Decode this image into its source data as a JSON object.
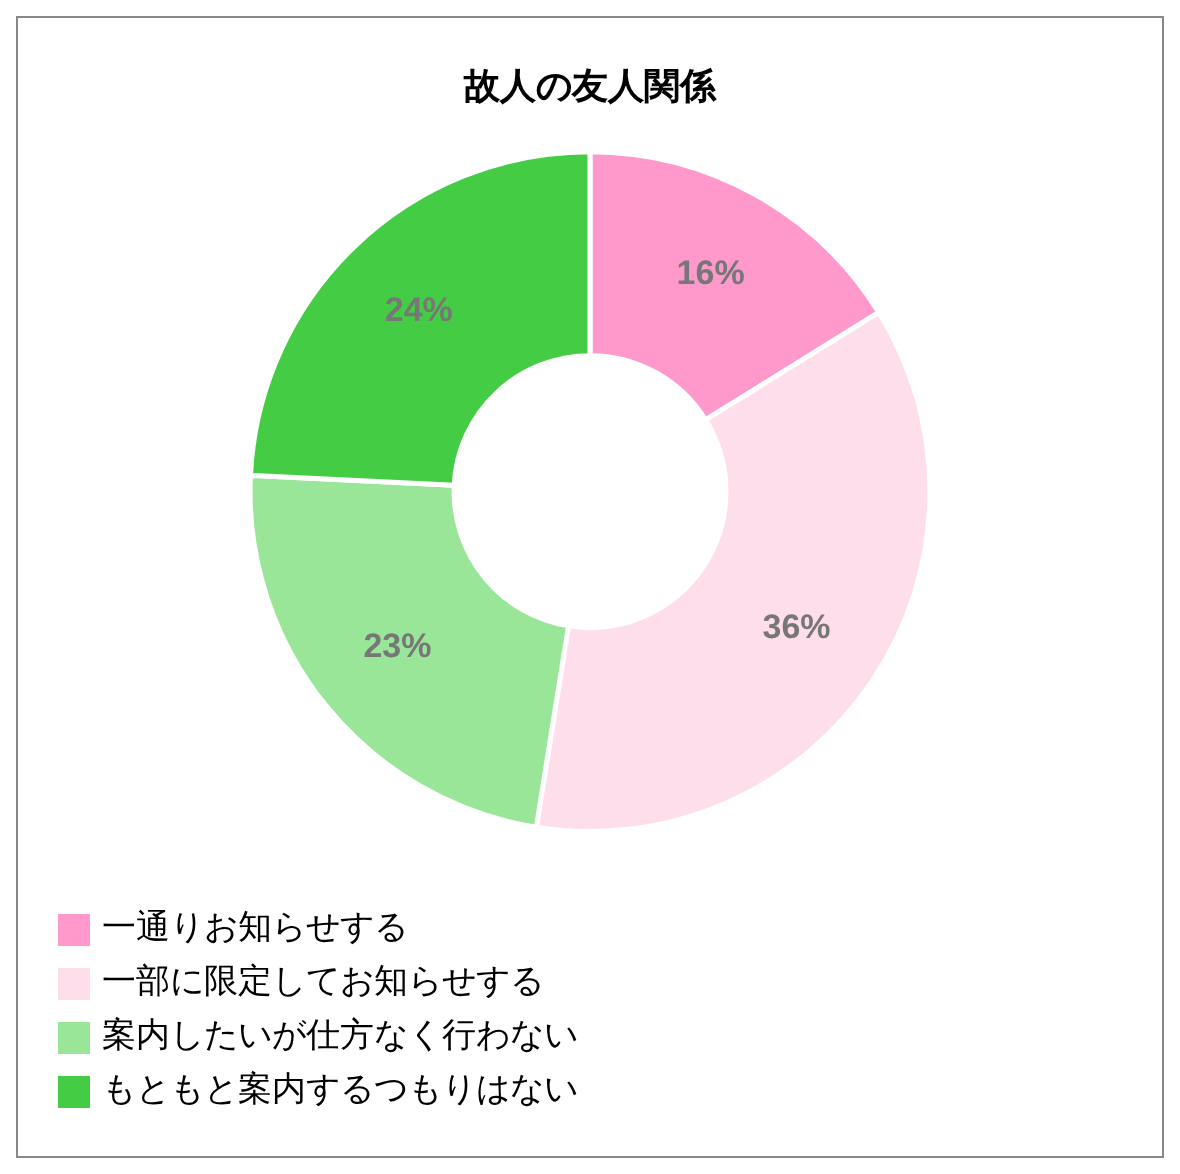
{
  "chart_data": {
    "type": "donut",
    "title": "故人の友人関係",
    "categories": [
      "一通りお知らせする",
      "一部に限定してお知らせする",
      "案内したいが仕方なく行わない",
      "もともと案内するつもりはない"
    ],
    "values": [
      16,
      36,
      23,
      24
    ],
    "colors": [
      "#ff99cc",
      "#ffdeeb",
      "#99e699",
      "#44cc44"
    ],
    "value_labels": [
      "16%",
      "36%",
      "23%",
      "24%"
    ],
    "legend": "bottom left"
  }
}
